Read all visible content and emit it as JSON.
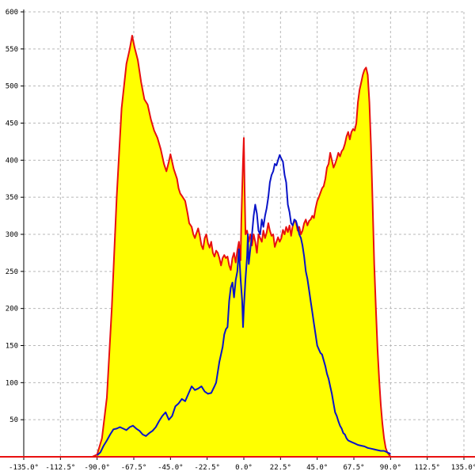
{
  "chart_data": {
    "type": "area",
    "title": "",
    "xlabel": "",
    "ylabel": "",
    "xlim": [
      -135,
      135
    ],
    "ylim": [
      0,
      600
    ],
    "grid": true,
    "legend": "none",
    "x_ticks": [
      {
        "value": -135,
        "label": "-135.0°"
      },
      {
        "value": -112.5,
        "label": "-112.5°"
      },
      {
        "value": -90,
        "label": "-90.0°"
      },
      {
        "value": -67.5,
        "label": "-67.5°"
      },
      {
        "value": -45,
        "label": "-45.0°"
      },
      {
        "value": -22.5,
        "label": "-22.5°"
      },
      {
        "value": 0,
        "label": "0.0°"
      },
      {
        "value": 22.5,
        "label": "22.5°"
      },
      {
        "value": 45,
        "label": "45.0°"
      },
      {
        "value": 67.5,
        "label": "67.5°"
      },
      {
        "value": 90,
        "label": "90.0°"
      },
      {
        "value": 112.5,
        "label": "112.5°"
      },
      {
        "value": 135,
        "label": "135.0°"
      }
    ],
    "y_ticks": [
      {
        "value": 50,
        "label": "50"
      },
      {
        "value": 100,
        "label": "100"
      },
      {
        "value": 150,
        "label": "150"
      },
      {
        "value": 200,
        "label": "200"
      },
      {
        "value": 250,
        "label": "250"
      },
      {
        "value": 300,
        "label": "300"
      },
      {
        "value": 350,
        "label": "350"
      },
      {
        "value": 400,
        "label": "400"
      },
      {
        "value": 450,
        "label": "450"
      },
      {
        "value": 500,
        "label": "500"
      },
      {
        "value": 550,
        "label": "550"
      },
      {
        "value": 600,
        "label": "600"
      }
    ],
    "series": [
      {
        "color": "#e81010",
        "fill": "#ffff00",
        "points": [
          [
            -135,
            0
          ],
          [
            -93,
            0
          ],
          [
            -90,
            3
          ],
          [
            -87,
            25
          ],
          [
            -84,
            80
          ],
          [
            -81,
            200
          ],
          [
            -78,
            350
          ],
          [
            -75,
            470
          ],
          [
            -72,
            530
          ],
          [
            -70,
            550
          ],
          [
            -68.5,
            568
          ],
          [
            -67,
            552
          ],
          [
            -65,
            535
          ],
          [
            -63,
            505
          ],
          [
            -61,
            482
          ],
          [
            -59,
            475
          ],
          [
            -57,
            455
          ],
          [
            -55,
            440
          ],
          [
            -53,
            430
          ],
          [
            -51,
            415
          ],
          [
            -49,
            395
          ],
          [
            -47.5,
            385
          ],
          [
            -46,
            398
          ],
          [
            -45,
            408
          ],
          [
            -44,
            398
          ],
          [
            -43,
            388
          ],
          [
            -41,
            375
          ],
          [
            -40,
            362
          ],
          [
            -39,
            355
          ],
          [
            -38,
            352
          ],
          [
            -36,
            345
          ],
          [
            -34.5,
            328
          ],
          [
            -33.5,
            315
          ],
          [
            -32,
            310
          ],
          [
            -31,
            300
          ],
          [
            -30,
            295
          ],
          [
            -29,
            302
          ],
          [
            -28,
            308
          ],
          [
            -27,
            298
          ],
          [
            -26,
            285
          ],
          [
            -25,
            280
          ],
          [
            -24,
            295
          ],
          [
            -23,
            300
          ],
          [
            -22,
            288
          ],
          [
            -21,
            282
          ],
          [
            -20,
            290
          ],
          [
            -19,
            275
          ],
          [
            -18,
            270
          ],
          [
            -17,
            278
          ],
          [
            -16,
            275
          ],
          [
            -15,
            268
          ],
          [
            -14,
            258
          ],
          [
            -13,
            268
          ],
          [
            -12,
            272
          ],
          [
            -11,
            268
          ],
          [
            -10,
            270
          ],
          [
            -9,
            258
          ],
          [
            -8,
            252
          ],
          [
            -7,
            268
          ],
          [
            -6,
            275
          ],
          [
            -5,
            262
          ],
          [
            -4,
            278
          ],
          [
            -3,
            290
          ],
          [
            -2,
            265
          ],
          [
            -1.5,
            320
          ],
          [
            -1,
            360
          ],
          [
            -0.5,
            400
          ],
          [
            0,
            430
          ],
          [
            0.5,
            360
          ],
          [
            1,
            300
          ],
          [
            2,
            305
          ],
          [
            3,
            290
          ],
          [
            4,
            300
          ],
          [
            5,
            285
          ],
          [
            6,
            300
          ],
          [
            7,
            290
          ],
          [
            8,
            275
          ],
          [
            9,
            300
          ],
          [
            10,
            295
          ],
          [
            11,
            290
          ],
          [
            12,
            305
          ],
          [
            13,
            295
          ],
          [
            14,
            302
          ],
          [
            15,
            315
          ],
          [
            16,
            305
          ],
          [
            17,
            298
          ],
          [
            18,
            300
          ],
          [
            19,
            283
          ],
          [
            20,
            290
          ],
          [
            21,
            296
          ],
          [
            22,
            290
          ],
          [
            23,
            295
          ],
          [
            24,
            306
          ],
          [
            25,
            300
          ],
          [
            26,
            310
          ],
          [
            27,
            303
          ],
          [
            28,
            312
          ],
          [
            29,
            298
          ],
          [
            30,
            312
          ],
          [
            31,
            318
          ],
          [
            32,
            316
          ],
          [
            33,
            305
          ],
          [
            34,
            310
          ],
          [
            35,
            300
          ],
          [
            36,
            305
          ],
          [
            37,
            315
          ],
          [
            38,
            320
          ],
          [
            39,
            312
          ],
          [
            40,
            318
          ],
          [
            41,
            320
          ],
          [
            42,
            325
          ],
          [
            43,
            322
          ],
          [
            44,
            335
          ],
          [
            45,
            345
          ],
          [
            46,
            350
          ],
          [
            47,
            356
          ],
          [
            48,
            362
          ],
          [
            49,
            365
          ],
          [
            50,
            375
          ],
          [
            51,
            390
          ],
          [
            52,
            395
          ],
          [
            53,
            410
          ],
          [
            54,
            400
          ],
          [
            55,
            390
          ],
          [
            56,
            395
          ],
          [
            57,
            402
          ],
          [
            58,
            410
          ],
          [
            59,
            405
          ],
          [
            60,
            412
          ],
          [
            61,
            415
          ],
          [
            62,
            422
          ],
          [
            63,
            432
          ],
          [
            64,
            438
          ],
          [
            65,
            428
          ],
          [
            66,
            438
          ],
          [
            67,
            442
          ],
          [
            68,
            440
          ],
          [
            69,
            450
          ],
          [
            70,
            478
          ],
          [
            71,
            495
          ],
          [
            72,
            505
          ],
          [
            73,
            515
          ],
          [
            74,
            522
          ],
          [
            75,
            525
          ],
          [
            76,
            515
          ],
          [
            77,
            478
          ],
          [
            78,
            420
          ],
          [
            79,
            340
          ],
          [
            80,
            260
          ],
          [
            81,
            200
          ],
          [
            82,
            145
          ],
          [
            83,
            105
          ],
          [
            84,
            70
          ],
          [
            85,
            45
          ],
          [
            86,
            25
          ],
          [
            87,
            12
          ],
          [
            88,
            6
          ],
          [
            89,
            3
          ],
          [
            90,
            0
          ],
          [
            135,
            0
          ]
        ]
      },
      {
        "color": "#0a14c8",
        "fill": "none",
        "points": [
          [
            -90,
            2
          ],
          [
            -88,
            6
          ],
          [
            -86,
            15
          ],
          [
            -84,
            22
          ],
          [
            -82,
            30
          ],
          [
            -80,
            37
          ],
          [
            -78,
            38
          ],
          [
            -76,
            40
          ],
          [
            -74,
            38
          ],
          [
            -72,
            36
          ],
          [
            -70,
            40
          ],
          [
            -68,
            42
          ],
          [
            -66,
            38
          ],
          [
            -64,
            35
          ],
          [
            -62,
            30
          ],
          [
            -60,
            28
          ],
          [
            -58,
            32
          ],
          [
            -56,
            35
          ],
          [
            -54,
            40
          ],
          [
            -52,
            48
          ],
          [
            -50,
            55
          ],
          [
            -48,
            60
          ],
          [
            -46,
            50
          ],
          [
            -44,
            55
          ],
          [
            -42,
            68
          ],
          [
            -40,
            72
          ],
          [
            -38,
            78
          ],
          [
            -36,
            75
          ],
          [
            -34,
            85
          ],
          [
            -32,
            95
          ],
          [
            -30,
            90
          ],
          [
            -28,
            92
          ],
          [
            -26,
            95
          ],
          [
            -24,
            88
          ],
          [
            -22,
            85
          ],
          [
            -20,
            86
          ],
          [
            -18,
            95
          ],
          [
            -17,
            100
          ],
          [
            -15,
            128
          ],
          [
            -13,
            148
          ],
          [
            -12,
            165
          ],
          [
            -11,
            172
          ],
          [
            -10,
            175
          ],
          [
            -9,
            210
          ],
          [
            -8,
            228
          ],
          [
            -7,
            235
          ],
          [
            -6,
            215
          ],
          [
            -5,
            238
          ],
          [
            -4,
            250
          ],
          [
            -3,
            280
          ],
          [
            -2,
            240
          ],
          [
            -1.5,
            225
          ],
          [
            -1,
            210
          ],
          [
            -0.5,
            175
          ],
          [
            0,
            200
          ],
          [
            1,
            240
          ],
          [
            2,
            270
          ],
          [
            2.5,
            300
          ],
          [
            3,
            260
          ],
          [
            4,
            280
          ],
          [
            5,
            300
          ],
          [
            6,
            325
          ],
          [
            7,
            340
          ],
          [
            8,
            328
          ],
          [
            9,
            305
          ],
          [
            10,
            300
          ],
          [
            11,
            320
          ],
          [
            12,
            310
          ],
          [
            13,
            325
          ],
          [
            14,
            335
          ],
          [
            15,
            350
          ],
          [
            16,
            370
          ],
          [
            17,
            380
          ],
          [
            18,
            385
          ],
          [
            19,
            395
          ],
          [
            20,
            393
          ],
          [
            21,
            400
          ],
          [
            22,
            407
          ],
          [
            23,
            402
          ],
          [
            24,
            398
          ],
          [
            25,
            380
          ],
          [
            26,
            370
          ],
          [
            27,
            340
          ],
          [
            28,
            330
          ],
          [
            29,
            315
          ],
          [
            30,
            312
          ],
          [
            31,
            320
          ],
          [
            32,
            318
          ],
          [
            33,
            310
          ],
          [
            34,
            300
          ],
          [
            35,
            295
          ],
          [
            36,
            285
          ],
          [
            37,
            270
          ],
          [
            38,
            250
          ],
          [
            39,
            240
          ],
          [
            40,
            225
          ],
          [
            41,
            210
          ],
          [
            42,
            195
          ],
          [
            43,
            180
          ],
          [
            44,
            165
          ],
          [
            45,
            150
          ],
          [
            46,
            145
          ],
          [
            47,
            140
          ],
          [
            48,
            138
          ],
          [
            49,
            130
          ],
          [
            50,
            122
          ],
          [
            51,
            112
          ],
          [
            52,
            105
          ],
          [
            53,
            95
          ],
          [
            54,
            85
          ],
          [
            55,
            72
          ],
          [
            56,
            60
          ],
          [
            57,
            55
          ],
          [
            58,
            48
          ],
          [
            59,
            42
          ],
          [
            60,
            38
          ],
          [
            61,
            32
          ],
          [
            62,
            30
          ],
          [
            63,
            25
          ],
          [
            64,
            22
          ],
          [
            66,
            20
          ],
          [
            68,
            18
          ],
          [
            70,
            16
          ],
          [
            72,
            15
          ],
          [
            74,
            14
          ],
          [
            76,
            12
          ],
          [
            78,
            11
          ],
          [
            80,
            10
          ],
          [
            82,
            9
          ],
          [
            84,
            8
          ],
          [
            86,
            8
          ],
          [
            88,
            6
          ],
          [
            90,
            4
          ]
        ]
      }
    ]
  }
}
